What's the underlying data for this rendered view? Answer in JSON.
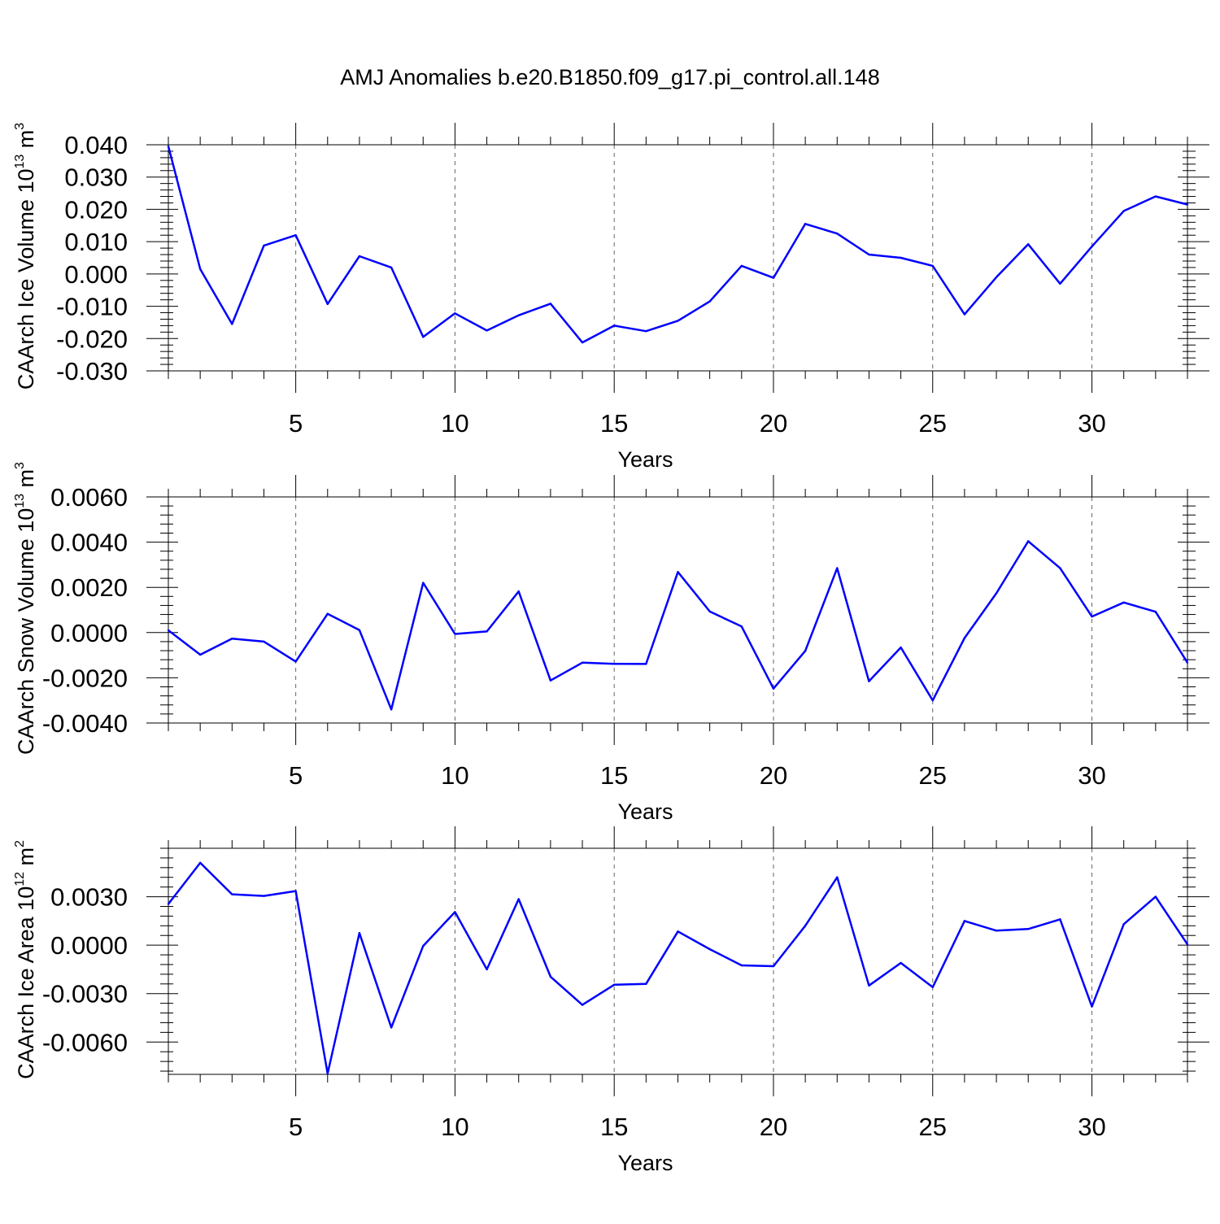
{
  "figure": {
    "title": "AMJ Anomalies b.e20.B1850.f09_g17.pi_control.all.148"
  },
  "chart_data": [
    {
      "type": "line",
      "title": "AMJ Anomalies b.e20.B1850.f09_g17.pi_control.all.148",
      "xlabel": "Years",
      "ylabel": {
        "text": "CAArch Ice Volume 10",
        "exp": "13",
        "unit": " m",
        "unit_exp": "3"
      },
      "xlim": [
        1,
        33
      ],
      "ylim": [
        -0.03,
        0.04
      ],
      "xticks": [
        5,
        10,
        15,
        20,
        25,
        30
      ],
      "xtick_labels": [
        "5",
        "10",
        "15",
        "20",
        "25",
        "30"
      ],
      "yticks": [
        0.04,
        0.03,
        0.02,
        0.01,
        0.0,
        -0.01,
        -0.02,
        -0.03
      ],
      "ytick_labels": [
        "0.040",
        "0.030",
        "0.020",
        "0.010",
        "0.000",
        "-0.010",
        "-0.020",
        "-0.030"
      ],
      "grid": "vertical dashed at labeled x ticks",
      "line_color": "#0000ff",
      "x": [
        1,
        2,
        3,
        4,
        5,
        6,
        7,
        8,
        9,
        10,
        11,
        12,
        13,
        14,
        15,
        16,
        17,
        18,
        19,
        20,
        21,
        22,
        23,
        24,
        25,
        26,
        27,
        28,
        29,
        30,
        31,
        32,
        33
      ],
      "values": [
        0.0395,
        0.0015,
        -0.0155,
        0.0088,
        0.012,
        -0.0093,
        0.0055,
        0.002,
        -0.0195,
        -0.0122,
        -0.0175,
        -0.0128,
        -0.0092,
        -0.0212,
        -0.016,
        -0.0177,
        -0.0145,
        -0.0085,
        0.0025,
        -0.0012,
        0.0155,
        0.0125,
        0.006,
        0.005,
        0.0025,
        -0.0125,
        -0.001,
        0.0092,
        -0.003,
        0.0085,
        0.0195,
        0.024,
        0.0215
      ]
    },
    {
      "type": "line",
      "xlabel": "Years",
      "ylabel": {
        "text": "CAArch Snow Volume 10",
        "exp": "13",
        "unit": " m",
        "unit_exp": "3"
      },
      "xlim": [
        1,
        33
      ],
      "ylim": [
        -0.004,
        0.006
      ],
      "xticks": [
        5,
        10,
        15,
        20,
        25,
        30
      ],
      "xtick_labels": [
        "5",
        "10",
        "15",
        "20",
        "25",
        "30"
      ],
      "yticks": [
        0.006,
        0.004,
        0.002,
        0.0,
        -0.002,
        -0.004
      ],
      "ytick_labels": [
        "0.0060",
        "0.0040",
        "0.0020",
        "0.0000",
        "-0.0020",
        "-0.0040"
      ],
      "grid": "vertical dashed at labeled x ticks",
      "line_color": "#0000ff",
      "x": [
        1,
        2,
        3,
        4,
        5,
        6,
        7,
        8,
        9,
        10,
        11,
        12,
        13,
        14,
        15,
        16,
        17,
        18,
        19,
        20,
        21,
        22,
        23,
        24,
        25,
        26,
        27,
        28,
        29,
        30,
        31,
        32,
        33
      ],
      "values": [
        0.0001,
        -0.00098,
        -0.00027,
        -0.0004,
        -0.00128,
        0.00083,
        0.00011,
        -0.0034,
        0.0022,
        -6e-05,
        5e-05,
        0.00182,
        -0.00212,
        -0.00133,
        -0.00138,
        -0.00139,
        0.00268,
        0.00093,
        0.00027,
        -0.00248,
        -0.00081,
        0.00285,
        -0.00215,
        -0.00066,
        -0.003,
        -0.00024,
        0.00174,
        0.00404,
        0.00285,
        0.00071,
        0.00133,
        0.00092,
        -0.00133
      ]
    },
    {
      "type": "line",
      "xlabel": "Years",
      "ylabel": {
        "text": "CAArch Ice Area 10",
        "exp": "12",
        "unit": " m",
        "unit_exp": "2"
      },
      "xlim": [
        1,
        33
      ],
      "ylim": [
        -0.008,
        0.006
      ],
      "xticks": [
        5,
        10,
        15,
        20,
        25,
        30
      ],
      "xtick_labels": [
        "5",
        "10",
        "15",
        "20",
        "25",
        "30"
      ],
      "yticks": [
        0.003,
        0.0,
        -0.003,
        -0.006
      ],
      "ytick_labels": [
        "0.0030",
        "0.0000",
        "-0.0030",
        "-0.0060"
      ],
      "grid": "vertical dashed at labeled x ticks",
      "line_color": "#0000ff",
      "x": [
        1,
        2,
        3,
        4,
        5,
        6,
        7,
        8,
        9,
        10,
        11,
        12,
        13,
        14,
        15,
        16,
        17,
        18,
        19,
        20,
        21,
        22,
        23,
        24,
        25,
        26,
        27,
        28,
        29,
        30,
        31,
        32,
        33
      ],
      "values": [
        0.00255,
        0.0051,
        0.00315,
        0.00305,
        0.00335,
        -0.00795,
        0.00075,
        -0.0051,
        -5e-05,
        0.00205,
        -0.0015,
        0.00285,
        -0.00195,
        -0.0037,
        -0.00245,
        -0.0024,
        0.00085,
        -0.00025,
        -0.00125,
        -0.0013,
        0.0012,
        0.0042,
        -0.0025,
        -0.0011,
        -0.0026,
        0.0015,
        0.0009,
        0.001,
        0.0016,
        -0.0038,
        0.0013,
        0.003,
        5e-05
      ]
    }
  ]
}
